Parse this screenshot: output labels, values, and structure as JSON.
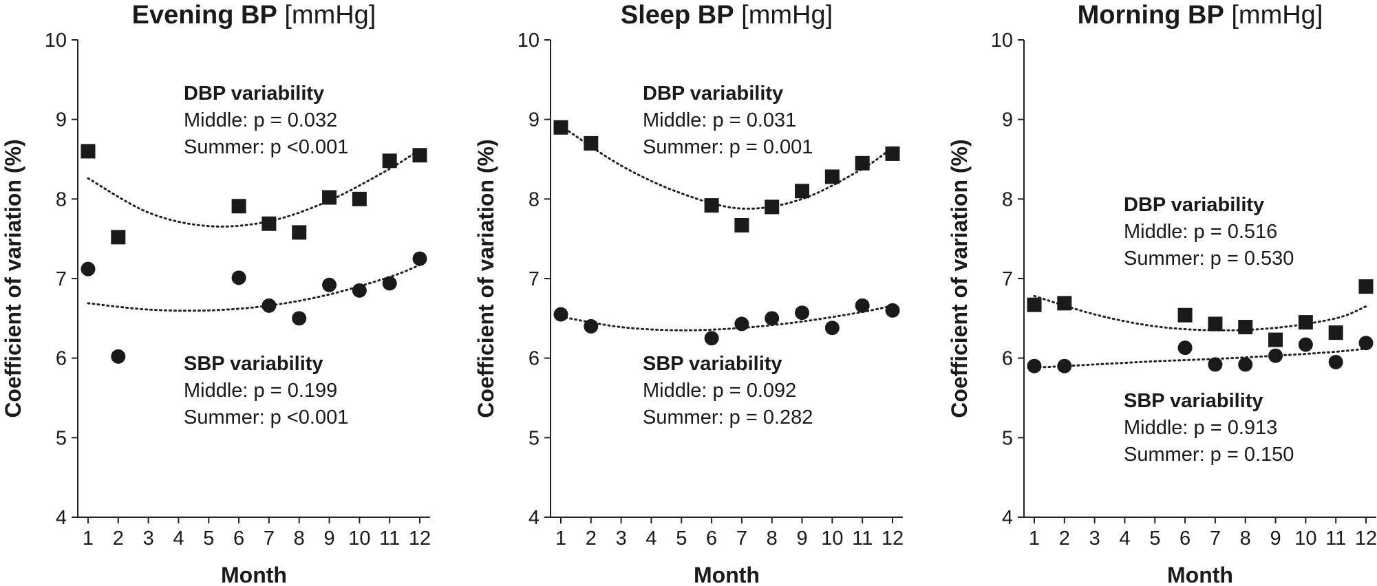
{
  "chart_data": [
    {
      "type": "scatter",
      "title": "Evening BP",
      "title_unit": "[mmHg]",
      "xlabel": "Month",
      "ylabel": "Coefficient of variation (%)",
      "xlim": [
        1,
        12
      ],
      "ylim": [
        4,
        10
      ],
      "x_ticks": [
        "1",
        "2",
        "3",
        "4",
        "5",
        "6",
        "7",
        "8",
        "9",
        "10",
        "11",
        "12"
      ],
      "y_ticks": [
        "4",
        "5",
        "6",
        "7",
        "8",
        "9",
        "10"
      ],
      "series": [
        {
          "name": "DBP variability",
          "marker": "square",
          "x": [
            1,
            2,
            6,
            7,
            8,
            9,
            10,
            11,
            12
          ],
          "values": [
            8.6,
            7.52,
            7.91,
            7.69,
            7.58,
            8.02,
            8.0,
            8.48,
            8.55
          ],
          "trend": {
            "x": [
              1,
              3,
              5,
              7,
              9,
              11,
              12
            ],
            "values": [
              8.26,
              7.83,
              7.66,
              7.72,
              7.98,
              8.38,
              8.62
            ]
          },
          "annotation": {
            "label": "DBP variability",
            "lines": [
              "Middle: p = 0.032",
              "Summer: p <0.001"
            ]
          }
        },
        {
          "name": "SBP variability",
          "marker": "circle",
          "x": [
            1,
            2,
            6,
            7,
            8,
            9,
            10,
            11,
            12
          ],
          "values": [
            7.12,
            6.02,
            7.01,
            6.66,
            6.5,
            6.92,
            6.85,
            6.94,
            7.25
          ],
          "trend": {
            "x": [
              1,
              3,
              5,
              7,
              9,
              11,
              12
            ],
            "values": [
              6.69,
              6.61,
              6.6,
              6.66,
              6.8,
              7.02,
              7.17
            ]
          },
          "annotation": {
            "label": "SBP variability",
            "lines": [
              "Middle: p = 0.199",
              "Summer: p <0.001"
            ]
          }
        }
      ]
    },
    {
      "type": "scatter",
      "title": "Sleep BP",
      "title_unit": "[mmHg]",
      "xlabel": "Month",
      "ylabel": "Coefficient of variation (%)",
      "xlim": [
        1,
        12
      ],
      "ylim": [
        4,
        10
      ],
      "x_ticks": [
        "1",
        "2",
        "3",
        "4",
        "5",
        "6",
        "7",
        "8",
        "9",
        "10",
        "11",
        "12"
      ],
      "y_ticks": [
        "4",
        "5",
        "6",
        "7",
        "8",
        "9",
        "10"
      ],
      "series": [
        {
          "name": "DBP variability",
          "marker": "square",
          "x": [
            1,
            2,
            6,
            7,
            8,
            9,
            10,
            11,
            12
          ],
          "values": [
            8.9,
            8.7,
            7.92,
            7.67,
            7.9,
            8.1,
            8.28,
            8.45,
            8.57
          ],
          "trend": {
            "x": [
              1,
              3,
              5,
              7,
              9,
              11,
              12
            ],
            "values": [
              8.92,
              8.42,
              8.07,
              7.88,
              8.0,
              8.38,
              8.65
            ]
          },
          "annotation": {
            "label": "DBP variability",
            "lines": [
              "Middle: p = 0.031",
              "Summer: p = 0.001"
            ]
          }
        },
        {
          "name": "SBP variability",
          "marker": "circle",
          "x": [
            1,
            2,
            6,
            7,
            8,
            9,
            10,
            11,
            12
          ],
          "values": [
            6.55,
            6.4,
            6.25,
            6.43,
            6.5,
            6.57,
            6.38,
            6.66,
            6.6
          ],
          "trend": {
            "x": [
              1,
              3,
              5,
              7,
              9,
              11,
              12
            ],
            "values": [
              6.52,
              6.39,
              6.35,
              6.38,
              6.46,
              6.58,
              6.66
            ]
          },
          "annotation": {
            "label": "SBP variability",
            "lines": [
              "Middle: p = 0.092",
              "Summer: p = 0.282"
            ]
          }
        }
      ]
    },
    {
      "type": "scatter",
      "title": "Morning BP",
      "title_unit": "[mmHg]",
      "xlabel": "Month",
      "ylabel": "Coefficient of variation (%)",
      "xlim": [
        1,
        12
      ],
      "ylim": [
        4,
        10
      ],
      "x_ticks": [
        "1",
        "2",
        "3",
        "4",
        "5",
        "6",
        "7",
        "8",
        "9",
        "10",
        "11",
        "12"
      ],
      "y_ticks": [
        "4",
        "5",
        "6",
        "7",
        "8",
        "9",
        "10"
      ],
      "series": [
        {
          "name": "DBP variability",
          "marker": "square",
          "x": [
            1,
            2,
            6,
            7,
            8,
            9,
            10,
            11,
            12
          ],
          "values": [
            6.67,
            6.69,
            6.54,
            6.43,
            6.39,
            6.23,
            6.45,
            6.32,
            6.9
          ],
          "trend": {
            "x": [
              1,
              3,
              5,
              7,
              9,
              11,
              12
            ],
            "values": [
              6.78,
              6.55,
              6.4,
              6.35,
              6.38,
              6.5,
              6.65
            ]
          },
          "annotation": {
            "label": "DBP variability",
            "lines": [
              "Middle: p = 0.516",
              "Summer: p = 0.530"
            ]
          }
        },
        {
          "name": "SBP variability",
          "marker": "circle",
          "x": [
            1,
            2,
            6,
            7,
            8,
            9,
            10,
            11,
            12
          ],
          "values": [
            5.9,
            5.9,
            6.13,
            5.92,
            5.92,
            6.03,
            6.17,
            5.95,
            6.19
          ],
          "trend": {
            "x": [
              1,
              3,
              5,
              7,
              9,
              11,
              12
            ],
            "values": [
              5.88,
              5.92,
              5.96,
              5.99,
              6.03,
              6.08,
              6.12
            ]
          },
          "annotation": {
            "label": "SBP variability",
            "lines": [
              "Middle: p = 0.913",
              "Summer: p = 0.150"
            ]
          }
        }
      ]
    }
  ]
}
